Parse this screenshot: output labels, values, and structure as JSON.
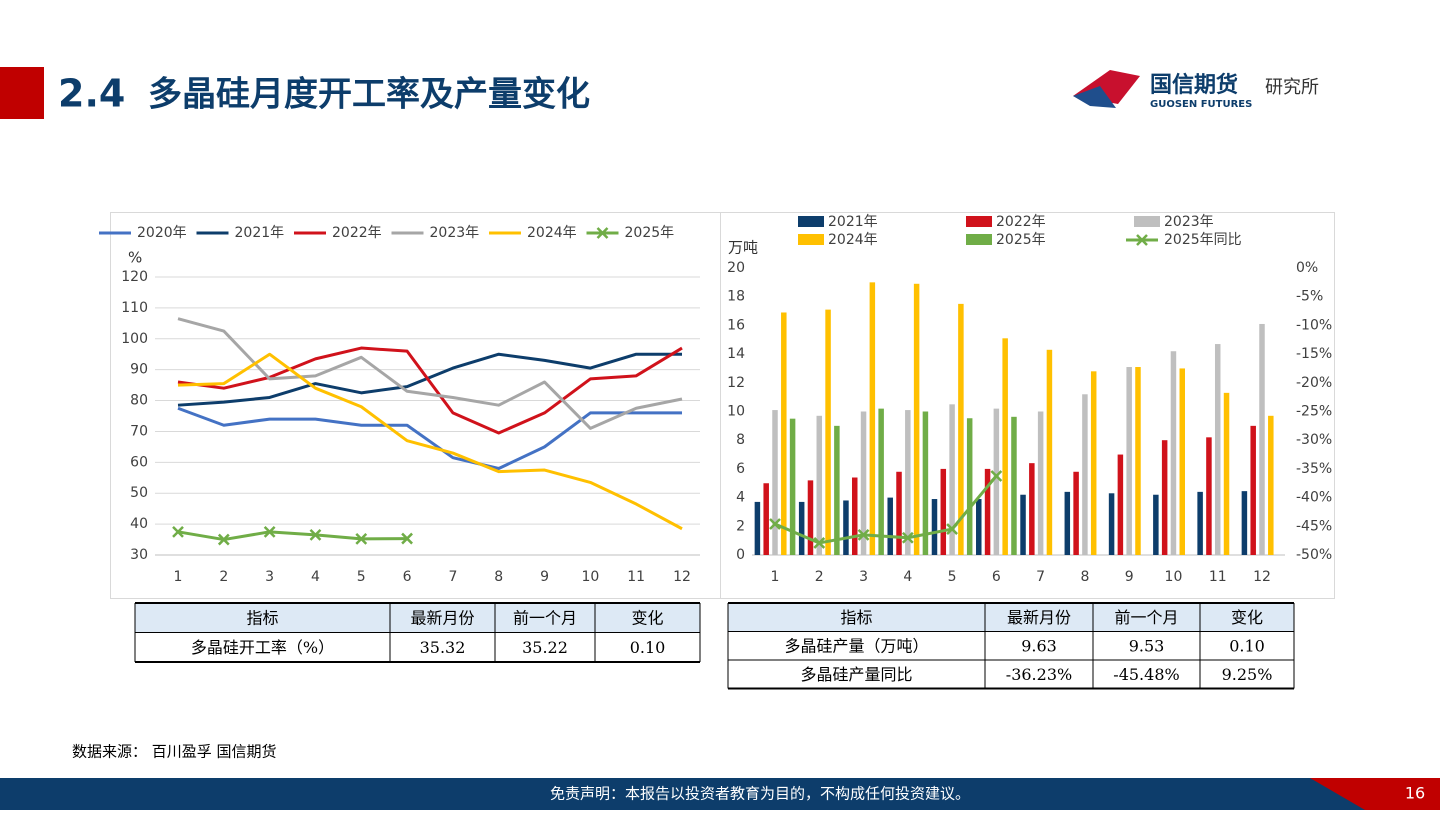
{
  "header": {
    "number": "2.4",
    "title": "多晶硅月度开工率及产量变化",
    "logo_cn": "国信期货",
    "logo_en": "GUOSEN FUTURES",
    "dept": "研究所"
  },
  "chart_data": [
    {
      "type": "line",
      "y_label": "%",
      "categories": [
        "1",
        "2",
        "3",
        "4",
        "5",
        "6",
        "7",
        "8",
        "9",
        "10",
        "11",
        "12"
      ],
      "ylim": [
        30,
        120
      ],
      "yticks": [
        30,
        40,
        50,
        60,
        70,
        80,
        90,
        100,
        110,
        120
      ],
      "grid": true,
      "legend": "top",
      "series": [
        {
          "name": "2020年",
          "color": "#4472c4",
          "values": [
            77.5,
            72,
            74,
            74,
            72,
            72,
            61.5,
            58,
            65,
            76,
            76,
            76
          ]
        },
        {
          "name": "2021年",
          "color": "#0d3d6b",
          "values": [
            78.5,
            79.5,
            81,
            85.5,
            82.5,
            84.5,
            90.5,
            95,
            93,
            90.5,
            95,
            95
          ]
        },
        {
          "name": "2022年",
          "color": "#d0121b",
          "values": [
            86,
            84,
            87.5,
            93.5,
            97,
            96,
            76,
            69.5,
            76,
            87,
            88,
            97
          ]
        },
        {
          "name": "2023年",
          "color": "#a6a6a6",
          "values": [
            106.5,
            102.5,
            87,
            88,
            94,
            83,
            81,
            78.5,
            86,
            71,
            77.5,
            80.5
          ]
        },
        {
          "name": "2024年",
          "color": "#ffc000",
          "values": [
            85,
            85.5,
            95,
            84,
            78,
            67,
            63,
            57,
            57.5,
            53.5,
            46.5,
            38.5
          ]
        },
        {
          "name": "2025年",
          "color": "#70ad47",
          "marker": "x",
          "values": [
            37.5,
            35,
            37.5,
            36.5,
            35.22,
            35.32,
            null,
            null,
            null,
            null,
            null,
            null
          ]
        }
      ]
    },
    {
      "type": "bar",
      "y_label": "万吨",
      "categories": [
        "1",
        "2",
        "3",
        "4",
        "5",
        "6",
        "7",
        "8",
        "9",
        "10",
        "11",
        "12"
      ],
      "ylim": [
        0,
        20
      ],
      "yticks": [
        0,
        2,
        4,
        6,
        8,
        10,
        12,
        14,
        16,
        18,
        20
      ],
      "y2lim": [
        -50,
        0
      ],
      "y2ticks": [
        {
          "value": 0,
          "label": "0%"
        },
        {
          "value": -5,
          "label": "-5%"
        },
        {
          "value": -10,
          "label": "-10%"
        },
        {
          "value": -15,
          "label": "-15%"
        },
        {
          "value": -20,
          "label": "-20%"
        },
        {
          "value": -25,
          "label": "-25%"
        },
        {
          "value": -30,
          "label": "-30%"
        },
        {
          "value": -35,
          "label": "-35%"
        },
        {
          "value": -40,
          "label": "-40%"
        },
        {
          "value": -45,
          "label": "-45%"
        },
        {
          "value": -50,
          "label": "-50%"
        }
      ],
      "legend": "top",
      "series": [
        {
          "name": "2021年",
          "color": "#0d3d6b",
          "values": [
            3.7,
            3.7,
            3.8,
            4.0,
            3.9,
            3.9,
            4.2,
            4.4,
            4.3,
            4.2,
            4.4,
            4.45
          ]
        },
        {
          "name": "2022年",
          "color": "#d0121b",
          "values": [
            5.0,
            5.2,
            5.4,
            5.8,
            6.0,
            6.0,
            6.4,
            5.8,
            7.0,
            8.0,
            8.2,
            9.0
          ]
        },
        {
          "name": "2023年",
          "color": "#bfbfbf",
          "values": [
            10.1,
            9.7,
            10.0,
            10.1,
            10.5,
            10.2,
            10.0,
            11.2,
            13.1,
            14.2,
            14.7,
            16.1
          ]
        },
        {
          "name": "2024年",
          "color": "#ffc000",
          "values": [
            16.9,
            17.1,
            19.0,
            18.9,
            17.5,
            15.1,
            14.3,
            12.8,
            13.1,
            13.0,
            11.3,
            9.7
          ]
        },
        {
          "name": "2025年",
          "color": "#70ad47",
          "values": [
            9.5,
            9.0,
            10.2,
            10.0,
            9.53,
            9.63,
            null,
            null,
            null,
            null,
            null,
            null
          ]
        },
        {
          "name": "2025年同比",
          "color": "#70ad47",
          "type": "line",
          "marker": "x",
          "axis": "y2",
          "values": [
            -44.6,
            -47.9,
            -46.5,
            -47,
            -45.48,
            -36.23,
            null,
            null,
            null,
            null,
            null,
            null
          ]
        }
      ]
    }
  ],
  "table_left": {
    "header": [
      "指标",
      "最新月份",
      "前一个月",
      "变化"
    ],
    "rows": [
      [
        "多晶硅开工率（%）",
        "35.32",
        "35.22",
        "0.10"
      ]
    ]
  },
  "table_right": {
    "header": [
      "指标",
      "最新月份",
      "前一个月",
      "变化"
    ],
    "rows": [
      [
        "多晶硅产量（万吨）",
        "9.63",
        "9.53",
        "0.10"
      ],
      [
        "多晶硅产量同比",
        "-36.23%",
        "-45.48%",
        "9.25%"
      ]
    ]
  },
  "source": "数据来源：  百川盈孚 国信期货",
  "footer": {
    "disclaimer": "免责声明：本报告以投资者教育为目的，不构成任何投资建议。",
    "page": "16"
  }
}
